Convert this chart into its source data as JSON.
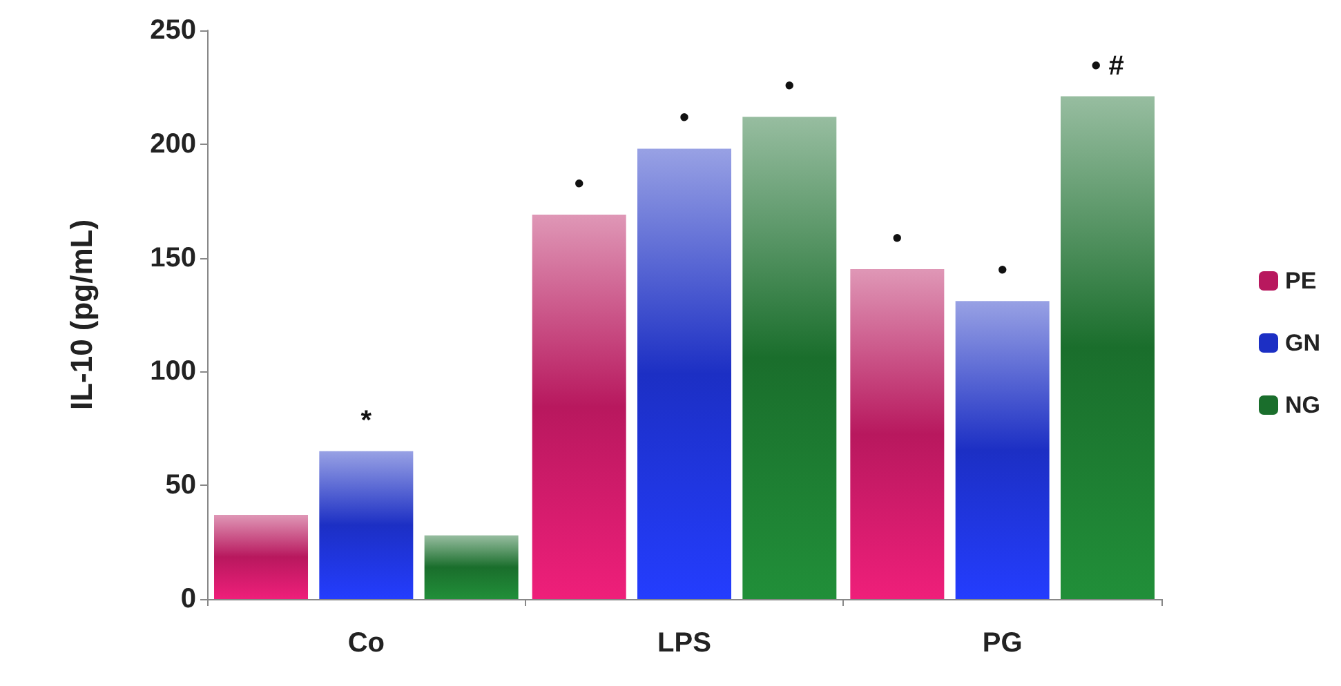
{
  "chart_data": {
    "type": "bar",
    "ylabel": "IL-10 (pg/mL)",
    "categories": [
      "Co",
      "LPS",
      "PG"
    ],
    "series": [
      {
        "name": "PE",
        "color": "#b8185e",
        "values": [
          37,
          169,
          145
        ],
        "value_labels": [
          null,
          "•",
          "•"
        ]
      },
      {
        "name": "GN",
        "color": "#1c2fc4",
        "values": [
          65,
          198,
          131
        ],
        "value_labels": [
          "*",
          "•",
          "•"
        ]
      },
      {
        "name": "NG",
        "color": "#1a6e2c",
        "values": [
          28,
          212,
          221
        ],
        "value_labels": [
          null,
          "•",
          "• #"
        ]
      }
    ],
    "ylim": [
      0,
      250
    ],
    "yticks": [
      0,
      50,
      100,
      150,
      200,
      250
    ],
    "grid": false,
    "legend": "right"
  }
}
